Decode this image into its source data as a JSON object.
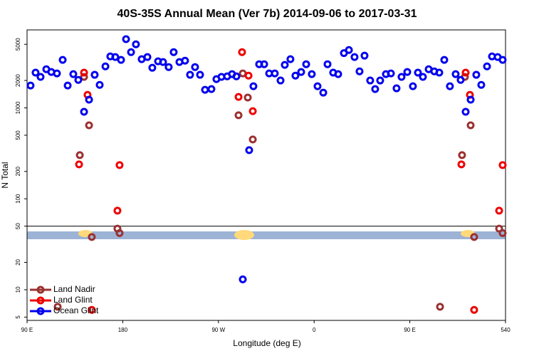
{
  "chart_data": {
    "type": "scatter",
    "title": "40S-35S Annual Mean (Ver 7b)   2014-09-06 to 2017-03-31",
    "xlabel": "Longitude (deg E)",
    "ylabel": "N Total",
    "xlim": [
      90,
      540
    ],
    "ylim": [
      4.6,
      7200
    ],
    "log_y": true,
    "xticks": [
      {
        "value": 90,
        "label": "90 E"
      },
      180,
      {
        "value": 270,
        "label": "90 W"
      },
      {
        "value": 360,
        "label": "0"
      },
      {
        "value": 450,
        "label": "90 E"
      },
      540
    ],
    "yticks": [
      5,
      10,
      20,
      50,
      100,
      200,
      500,
      1000,
      2000,
      5000
    ],
    "hline": 50,
    "legend": "lower left",
    "series": [
      {
        "name": "Land Nadir",
        "color": "#9b3030",
        "x": [
          118.8,
          139.6,
          143.6,
          148.3,
          150.9,
          175,
          177,
          288.9,
          292.9,
          297.6,
          302.3,
          478.4,
          499.1,
          501.8,
          507.2,
          510.5,
          534,
          537.3
        ],
        "values": [
          6.5,
          302,
          2190,
          643,
          38,
          47,
          42,
          830,
          2390,
          1300,
          449,
          6.5,
          302,
          2190,
          643,
          38,
          47,
          42
        ]
      },
      {
        "name": "Land Glint",
        "color": "#ee0000",
        "x": [
          143.6,
          146.9,
          138.9,
          150.9,
          175,
          177,
          292.2,
          298.3,
          288.9,
          302.3,
          502.5,
          506.5,
          498.5,
          510.5,
          534,
          537.3
        ],
        "values": [
          2440,
          1390,
          239,
          6.0,
          74,
          235,
          4100,
          2260,
          1320,
          920,
          2440,
          1390,
          239,
          6.0,
          74,
          235
        ]
      },
      {
        "name": "Ocean Glint",
        "color": "#0000ee",
        "x": [
          93.3,
          98,
          102.7,
          108.1,
          112.8,
          118.1,
          123.5,
          128.2,
          133.5,
          138.2,
          143.6,
          148.3,
          153.6,
          158.3,
          163.7,
          168.3,
          173,
          178.4,
          183.1,
          187.8,
          192.4,
          197.8,
          203.2,
          207.8,
          213.2,
          217.9,
          223.2,
          227.9,
          233.3,
          238.6,
          243.3,
          248,
          252.7,
          257.4,
          263.4,
          268.1,
          272.8,
          278.2,
          282.8,
          286.9,
          292.9,
          298.9,
          302.9,
          308.3,
          313,
          317.7,
          323,
          328.4,
          332.4,
          337.7,
          342.4,
          347.8,
          352.5,
          357.8,
          363.2,
          368.6,
          372.6,
          377.9,
          382.6,
          388,
          392.7,
          398,
          402.7,
          407.4,
          412.7,
          417.4,
          422.1,
          427.5,
          432.2,
          437.5,
          442.2,
          447.6,
          452.9,
          457.6,
          462.3,
          467.7,
          473,
          477.7,
          482.4,
          487.7,
          493.1,
          497.8,
          502.5,
          507.2,
          512.5,
          517.2,
          522.6,
          527.3,
          532.6,
          537.3
        ],
        "values": [
          1760,
          2440,
          2190,
          2660,
          2480,
          2390,
          3370,
          1760,
          2350,
          2030,
          906,
          1230,
          2310,
          1790,
          2860,
          3680,
          3620,
          3370,
          5700,
          4100,
          5000,
          3430,
          3620,
          2760,
          3250,
          3190,
          2810,
          4100,
          3190,
          3300,
          2310,
          2810,
          2310,
          1580,
          1610,
          2070,
          2190,
          2220,
          2350,
          2220,
          13,
          343,
          1730,
          3020,
          3020,
          2390,
          2390,
          2000,
          2970,
          3430,
          2260,
          2480,
          3020,
          2350,
          1730,
          1470,
          3020,
          2440,
          2350,
          4000,
          4330,
          3620,
          2520,
          3750,
          2000,
          1610,
          2000,
          2350,
          2390,
          1640,
          2190,
          2480,
          1730,
          2440,
          2190,
          2660,
          2520,
          2440,
          3370,
          1730,
          2350,
          2030,
          906,
          1230,
          2310,
          1790,
          2860,
          3680,
          3620,
          3370
        ]
      }
    ]
  }
}
